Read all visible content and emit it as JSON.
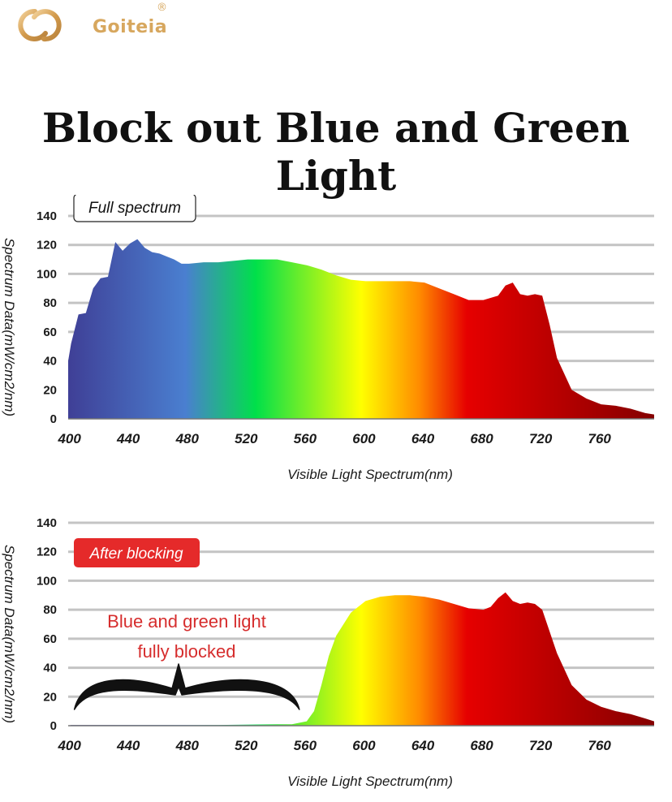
{
  "brand": {
    "name": "Goiteia",
    "registered": "®",
    "color": "#d7a75e"
  },
  "title": "Block out Blue and Green Light",
  "colors": {
    "gridline": "#c4c4c4",
    "badge_red": "#e52a2a",
    "annotation_red": "#d62d2d",
    "spectrum_stops": [
      "#3f3f96",
      "#4a7fd0",
      "#00e04a",
      "#ffff00",
      "#ff8a00",
      "#e60000",
      "#850000"
    ]
  },
  "chart_data": [
    {
      "type": "area",
      "legend_label": "Full spectrum",
      "xlabel": "Visible Light Spectrum(nm)",
      "ylabel": "Spectrum Data(mW/cm2/nm)",
      "xlim": [
        398,
        796
      ],
      "ylim": [
        0,
        140
      ],
      "x_ticks": [
        "400",
        "440",
        "480",
        "520",
        "560",
        "600",
        "640",
        "680",
        "720",
        "760"
      ],
      "y_ticks": [
        "0",
        "20",
        "40",
        "60",
        "80",
        "100",
        "120",
        "140"
      ],
      "grid": true,
      "legend_position": "top-left",
      "fill": "visible-spectrum-gradient",
      "x": [
        398,
        400,
        405,
        410,
        415,
        420,
        425,
        430,
        435,
        440,
        445,
        450,
        455,
        460,
        465,
        470,
        475,
        480,
        490,
        500,
        510,
        520,
        530,
        540,
        550,
        560,
        570,
        580,
        590,
        600,
        610,
        620,
        630,
        640,
        650,
        660,
        670,
        680,
        690,
        695,
        700,
        705,
        710,
        715,
        720,
        725,
        730,
        740,
        750,
        760,
        770,
        780,
        790,
        796
      ],
      "y": [
        40,
        52,
        72,
        73,
        90,
        97,
        98,
        122,
        116,
        121,
        124,
        118,
        115,
        114,
        112,
        110,
        107,
        107,
        108,
        108,
        109,
        110,
        110,
        110,
        108,
        106,
        103,
        99,
        96,
        95,
        95,
        95,
        95,
        94,
        90,
        86,
        82,
        82,
        85,
        92,
        94,
        86,
        85,
        86,
        85,
        65,
        42,
        20,
        14,
        10,
        9,
        7,
        4,
        3
      ]
    },
    {
      "type": "area",
      "legend_label": "After blocking",
      "xlabel": "Visible Light Spectrum(nm)",
      "ylabel": "Spectrum Data(mW/cm2/nm)",
      "xlim": [
        398,
        796
      ],
      "ylim": [
        0,
        140
      ],
      "x_ticks": [
        "400",
        "440",
        "480",
        "520",
        "560",
        "600",
        "640",
        "680",
        "720",
        "760"
      ],
      "y_ticks": [
        "0",
        "20",
        "40",
        "60",
        "80",
        "100",
        "120",
        "140"
      ],
      "grid": true,
      "legend_position": "top-left",
      "fill": "visible-spectrum-gradient",
      "annotation": [
        "Blue and green light",
        "fully blocked"
      ],
      "annotation_span": [
        400,
        555
      ],
      "x": [
        398,
        400,
        450,
        500,
        540,
        550,
        560,
        565,
        570,
        575,
        580,
        590,
        600,
        610,
        620,
        630,
        640,
        650,
        660,
        670,
        680,
        685,
        690,
        695,
        700,
        705,
        710,
        715,
        720,
        730,
        740,
        750,
        760,
        770,
        780,
        790,
        796
      ],
      "y": [
        0,
        0.5,
        0.5,
        0.5,
        1,
        1,
        3,
        10,
        28,
        48,
        62,
        78,
        86,
        89,
        90,
        90,
        89,
        87,
        84,
        81,
        80,
        82,
        88,
        92,
        86,
        84,
        85,
        84,
        80,
        50,
        28,
        18,
        13,
        10,
        8,
        5,
        3
      ]
    }
  ]
}
